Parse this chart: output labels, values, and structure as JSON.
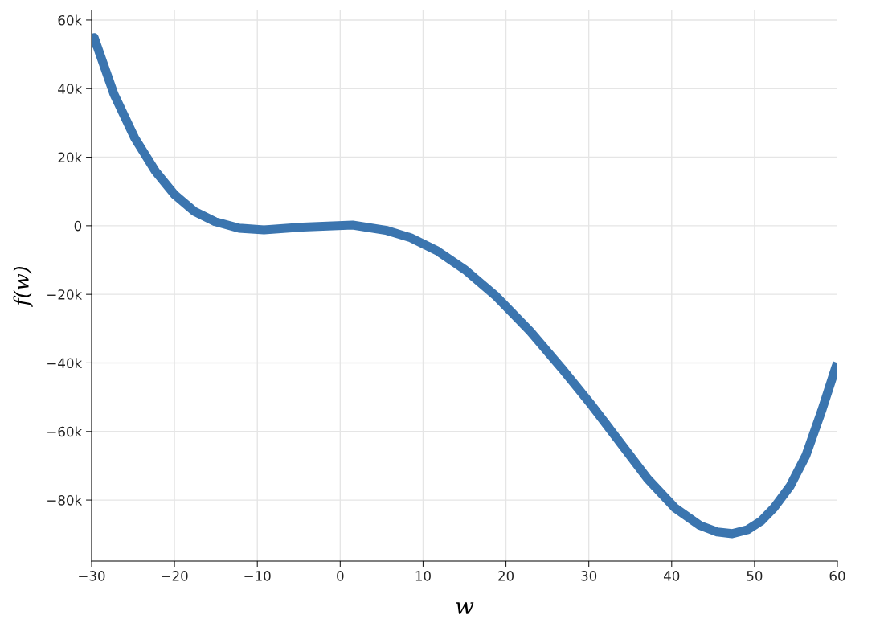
{
  "chart_data": {
    "type": "line",
    "xlabel": "w",
    "ylabel": "f(w)",
    "x": [
      -30,
      -29.7,
      -27.3,
      -24.8,
      -22.3,
      -20,
      -17.6,
      -15.1,
      -12.2,
      -9.2,
      -4.5,
      1.5,
      5.5,
      8.5,
      11.7,
      15.1,
      18.7,
      22.9,
      26.7,
      30.4,
      33.8,
      37.1,
      40.4,
      43.4,
      45.5,
      47.3,
      49.2,
      50.8,
      52.4,
      54.3,
      56.2,
      58.1,
      59.8,
      60
    ],
    "series": [
      {
        "color": "#3b75af",
        "values": [
          52,
          54.9,
          38.4,
          25.6,
          15.9,
          9.1,
          4.2,
          1.2,
          -0.7,
          -1.2,
          -0.4,
          0.2,
          -1.3,
          -3.5,
          -7.3,
          -12.9,
          -20.3,
          -30.7,
          -41.5,
          -52.5,
          -63.3,
          -73.8,
          -82.3,
          -87.4,
          -89.3,
          -89.8,
          -88.6,
          -86.1,
          -82.1,
          -75.9,
          -67,
          -54,
          -41.3,
          -40
        ]
      }
    ],
    "xlim": [
      -30,
      60
    ],
    "ylim": [
      -97.8,
      62.8
    ],
    "xticks": [
      {
        "value": -30,
        "label": "−30"
      },
      {
        "value": -20,
        "label": "−20"
      },
      {
        "value": -10,
        "label": "−10"
      },
      0,
      10,
      20,
      30,
      40,
      50,
      60
    ],
    "yticks": [
      {
        "value": -80,
        "label": "−80k"
      },
      {
        "value": -60,
        "label": "−60k"
      },
      {
        "value": -40,
        "label": "−40k"
      },
      {
        "value": -20,
        "label": "−20k"
      },
      0,
      {
        "value": 20,
        "label": "20k"
      },
      {
        "value": 40,
        "label": "40k"
      },
      {
        "value": 60,
        "label": "60k"
      }
    ],
    "grid": true,
    "line_style": "solid",
    "marker": "none"
  }
}
